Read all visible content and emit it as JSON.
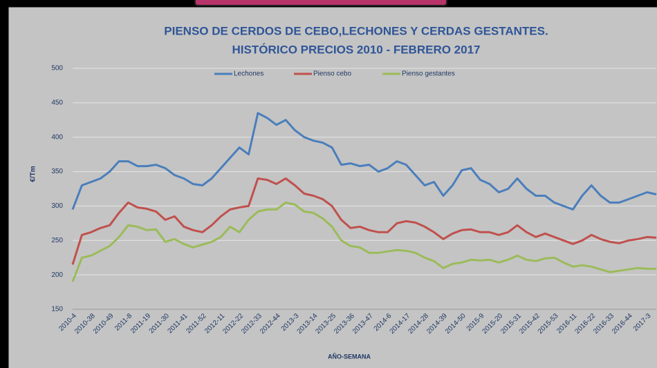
{
  "chart_data": {
    "type": "line",
    "title": [
      "PIENSO DE CERDOS DE CEBO,LECHONES Y CERDAS GESTANTES.",
      "HISTÓRICO PRECIOS 2010 - FEBRERO 2017"
    ],
    "xlabel": "AÑO-SEMANA",
    "ylabel": "€/Tm",
    "categories": [
      "2010-4",
      null,
      "2010-38",
      null,
      "2010-49",
      null,
      "2011-8",
      null,
      "2011-19",
      null,
      "2011-30",
      null,
      "2011-41",
      null,
      "2011-52",
      null,
      "2012-11",
      null,
      "2012-22",
      null,
      "2012-33",
      null,
      "2012-44",
      null,
      "2013-3",
      null,
      "2013-14",
      null,
      "2013-25",
      null,
      "2013-36",
      null,
      "2013-47",
      null,
      "2014-6",
      null,
      "2014-17",
      null,
      "2014-28",
      null,
      "2014-39",
      null,
      "2014-50",
      null,
      "2015-9",
      null,
      "2015-20",
      null,
      "2015-31",
      null,
      "2015-42",
      null,
      "2015-53",
      null,
      "2016-11",
      null,
      "2016-22",
      null,
      "2016-33",
      null,
      "2016-44",
      null,
      "2017-3",
      null
    ],
    "series": [
      {
        "name": "Lechones",
        "color": "#4a7ebb",
        "values": [
          295,
          330,
          335,
          340,
          350,
          365,
          365,
          358,
          358,
          360,
          355,
          345,
          340,
          332,
          330,
          340,
          355,
          370,
          385,
          375,
          435,
          428,
          418,
          425,
          410,
          400,
          395,
          392,
          385,
          360,
          362,
          358,
          360,
          350,
          355,
          365,
          360,
          345,
          330,
          335,
          315,
          330,
          352,
          355,
          338,
          332,
          320,
          325,
          340,
          325,
          315,
          315,
          305,
          300,
          295,
          315,
          330,
          315,
          305,
          305,
          310,
          315,
          320,
          317
        ]
      },
      {
        "name": "Pienso cebo",
        "color": "#c0504d",
        "values": [
          215,
          258,
          262,
          268,
          272,
          290,
          305,
          298,
          296,
          292,
          280,
          285,
          270,
          265,
          262,
          272,
          285,
          295,
          298,
          300,
          340,
          338,
          332,
          340,
          330,
          318,
          315,
          310,
          300,
          280,
          268,
          270,
          265,
          262,
          262,
          275,
          278,
          276,
          270,
          262,
          252,
          260,
          265,
          266,
          262,
          262,
          258,
          262,
          272,
          262,
          255,
          260,
          255,
          250,
          245,
          250,
          258,
          252,
          248,
          246,
          250,
          252,
          255,
          254
        ]
      },
      {
        "name": "Pienso gestantes",
        "color": "#9bbb59",
        "values": [
          190,
          225,
          228,
          235,
          242,
          255,
          272,
          270,
          265,
          266,
          248,
          252,
          245,
          240,
          244,
          248,
          255,
          270,
          262,
          280,
          292,
          295,
          295,
          305,
          302,
          292,
          290,
          282,
          270,
          250,
          242,
          240,
          232,
          232,
          234,
          236,
          235,
          232,
          225,
          220,
          210,
          216,
          218,
          222,
          221,
          222,
          218,
          222,
          228,
          222,
          220,
          224,
          225,
          218,
          212,
          214,
          212,
          208,
          204,
          206,
          208,
          210,
          209,
          209
        ]
      }
    ],
    "ylim": [
      150,
      500
    ],
    "yticks": [
      150,
      200,
      250,
      300,
      350,
      400,
      450,
      500
    ],
    "grid": true
  }
}
